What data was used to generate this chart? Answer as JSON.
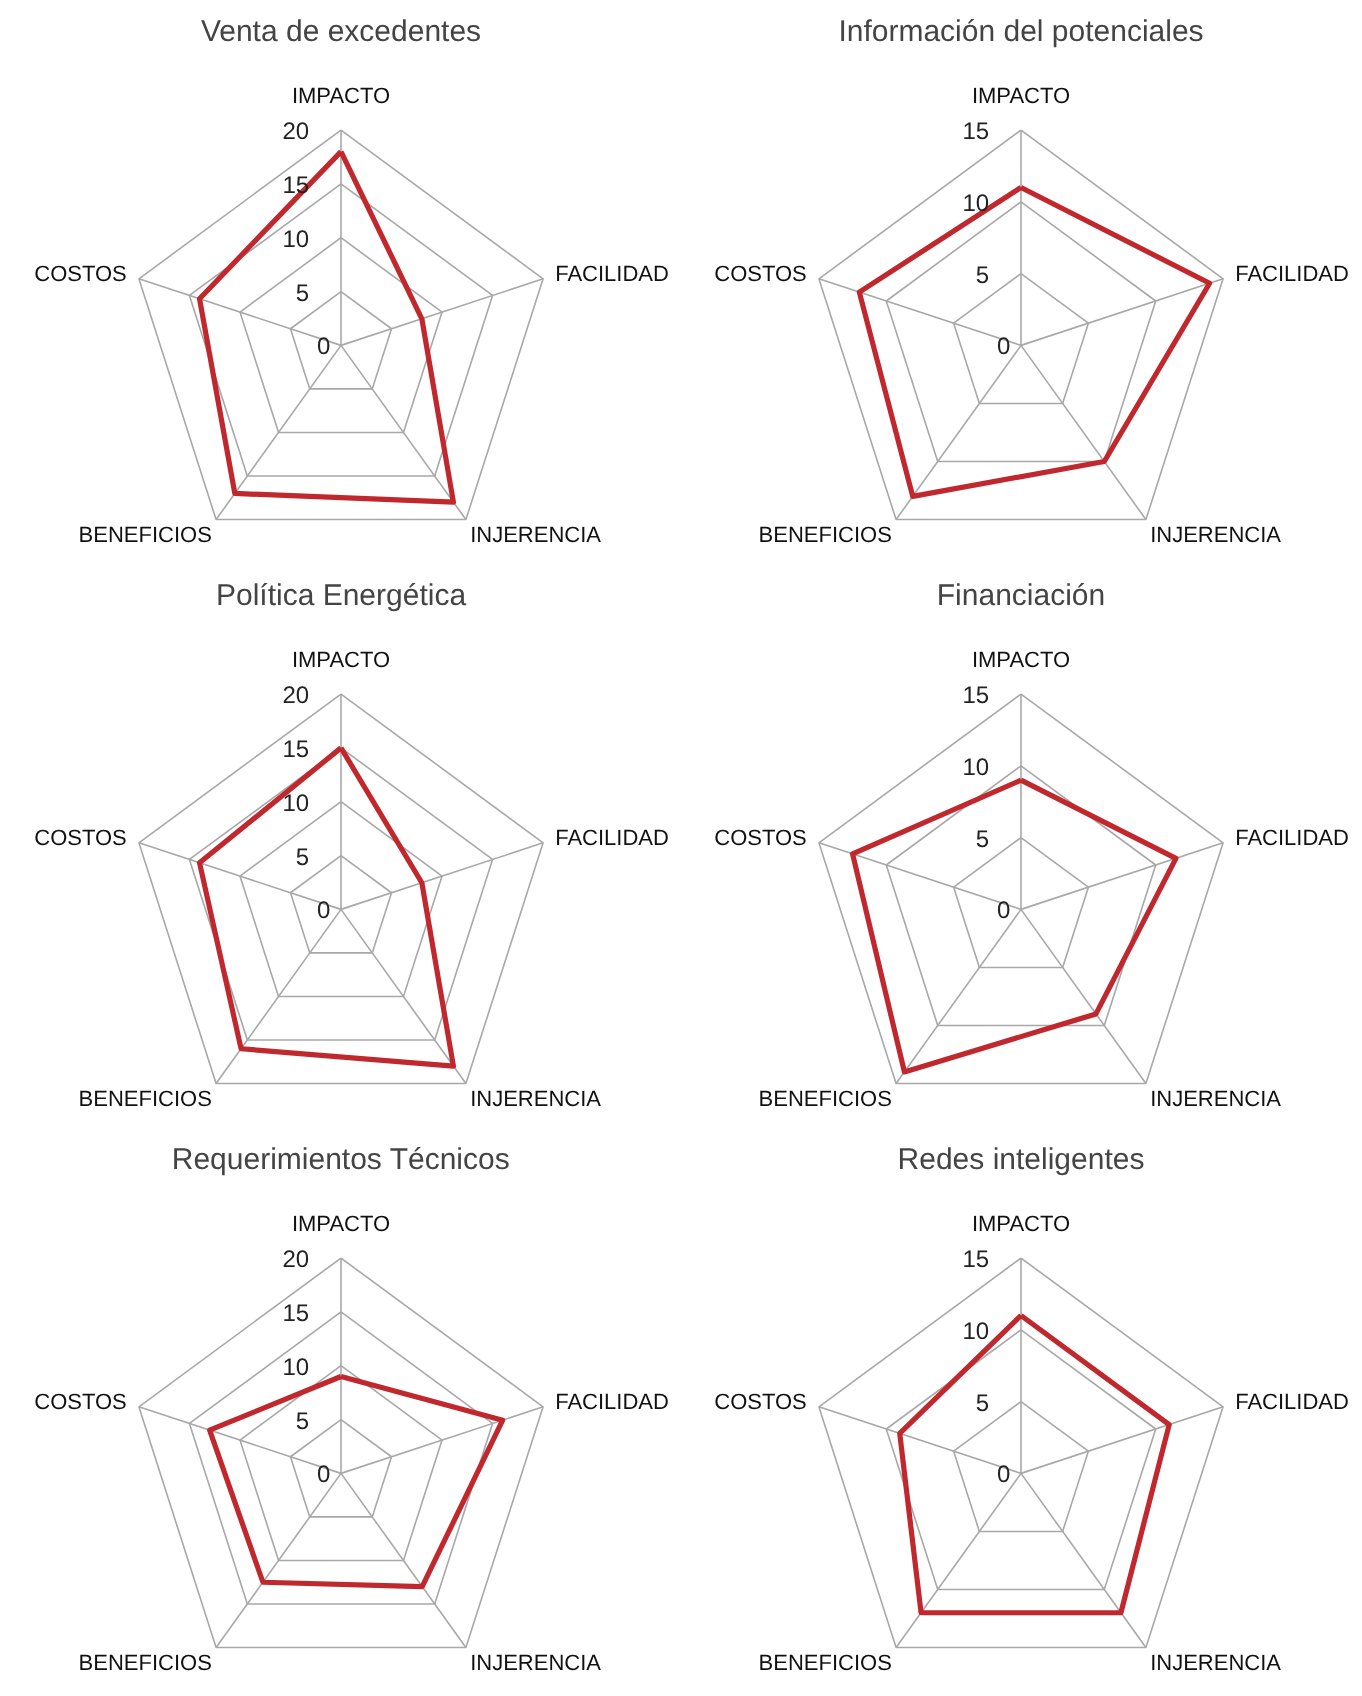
{
  "chart_data": [
    {
      "type": "radar",
      "title": "Venta de excedentes",
      "categories": [
        "IMPACTO",
        "FACILIDAD",
        "INJERENCIA",
        "BENEFICIOS",
        "COSTOS"
      ],
      "ylim": [
        0,
        20
      ],
      "yticks": [
        0,
        5,
        10,
        15,
        20
      ],
      "series": [
        {
          "color": "#c0282d",
          "values": [
            18,
            8,
            18,
            17,
            14
          ]
        }
      ]
    },
    {
      "type": "radar",
      "title": "Información del potenciales",
      "categories": [
        "IMPACTO",
        "FACILIDAD",
        "INJERENCIA",
        "BENEFICIOS",
        "COSTOS"
      ],
      "ylim": [
        0,
        15
      ],
      "yticks": [
        0,
        5,
        10,
        15
      ],
      "series": [
        {
          "color": "#c0282d",
          "values": [
            11,
            14,
            10,
            13,
            12
          ]
        }
      ]
    },
    {
      "type": "radar",
      "title": "Política Energética",
      "categories": [
        "IMPACTO",
        "FACILIDAD",
        "INJERENCIA",
        "BENEFICIOS",
        "COSTOS"
      ],
      "ylim": [
        0,
        20
      ],
      "yticks": [
        0,
        5,
        10,
        15,
        20
      ],
      "series": [
        {
          "color": "#c0282d",
          "values": [
            15,
            8,
            18,
            16,
            14
          ]
        }
      ]
    },
    {
      "type": "radar",
      "title": "Financiación",
      "categories": [
        "IMPACTO",
        "FACILIDAD",
        "INJERENCIA",
        "BENEFICIOS",
        "COSTOS"
      ],
      "ylim": [
        0,
        15
      ],
      "yticks": [
        0,
        5,
        10,
        15
      ],
      "series": [
        {
          "color": "#c0282d",
          "values": [
            9,
            11.5,
            9,
            14,
            12.5
          ]
        }
      ]
    },
    {
      "type": "radar",
      "title": "Requerimientos Técnicos",
      "categories": [
        "IMPACTO",
        "FACILIDAD",
        "INJERENCIA",
        "BENEFICIOS",
        "COSTOS"
      ],
      "ylim": [
        0,
        20
      ],
      "yticks": [
        0,
        5,
        10,
        15,
        20
      ],
      "series": [
        {
          "color": "#c0282d",
          "values": [
            9,
            16,
            13,
            12.5,
            13
          ]
        }
      ]
    },
    {
      "type": "radar",
      "title": "Redes inteligentes",
      "categories": [
        "IMPACTO",
        "FACILIDAD",
        "INJERENCIA",
        "BENEFICIOS",
        "COSTOS"
      ],
      "ylim": [
        0,
        15
      ],
      "yticks": [
        0,
        5,
        10,
        15
      ],
      "series": [
        {
          "color": "#c0282d",
          "values": [
            11,
            11,
            12,
            12,
            9
          ]
        }
      ]
    }
  ]
}
